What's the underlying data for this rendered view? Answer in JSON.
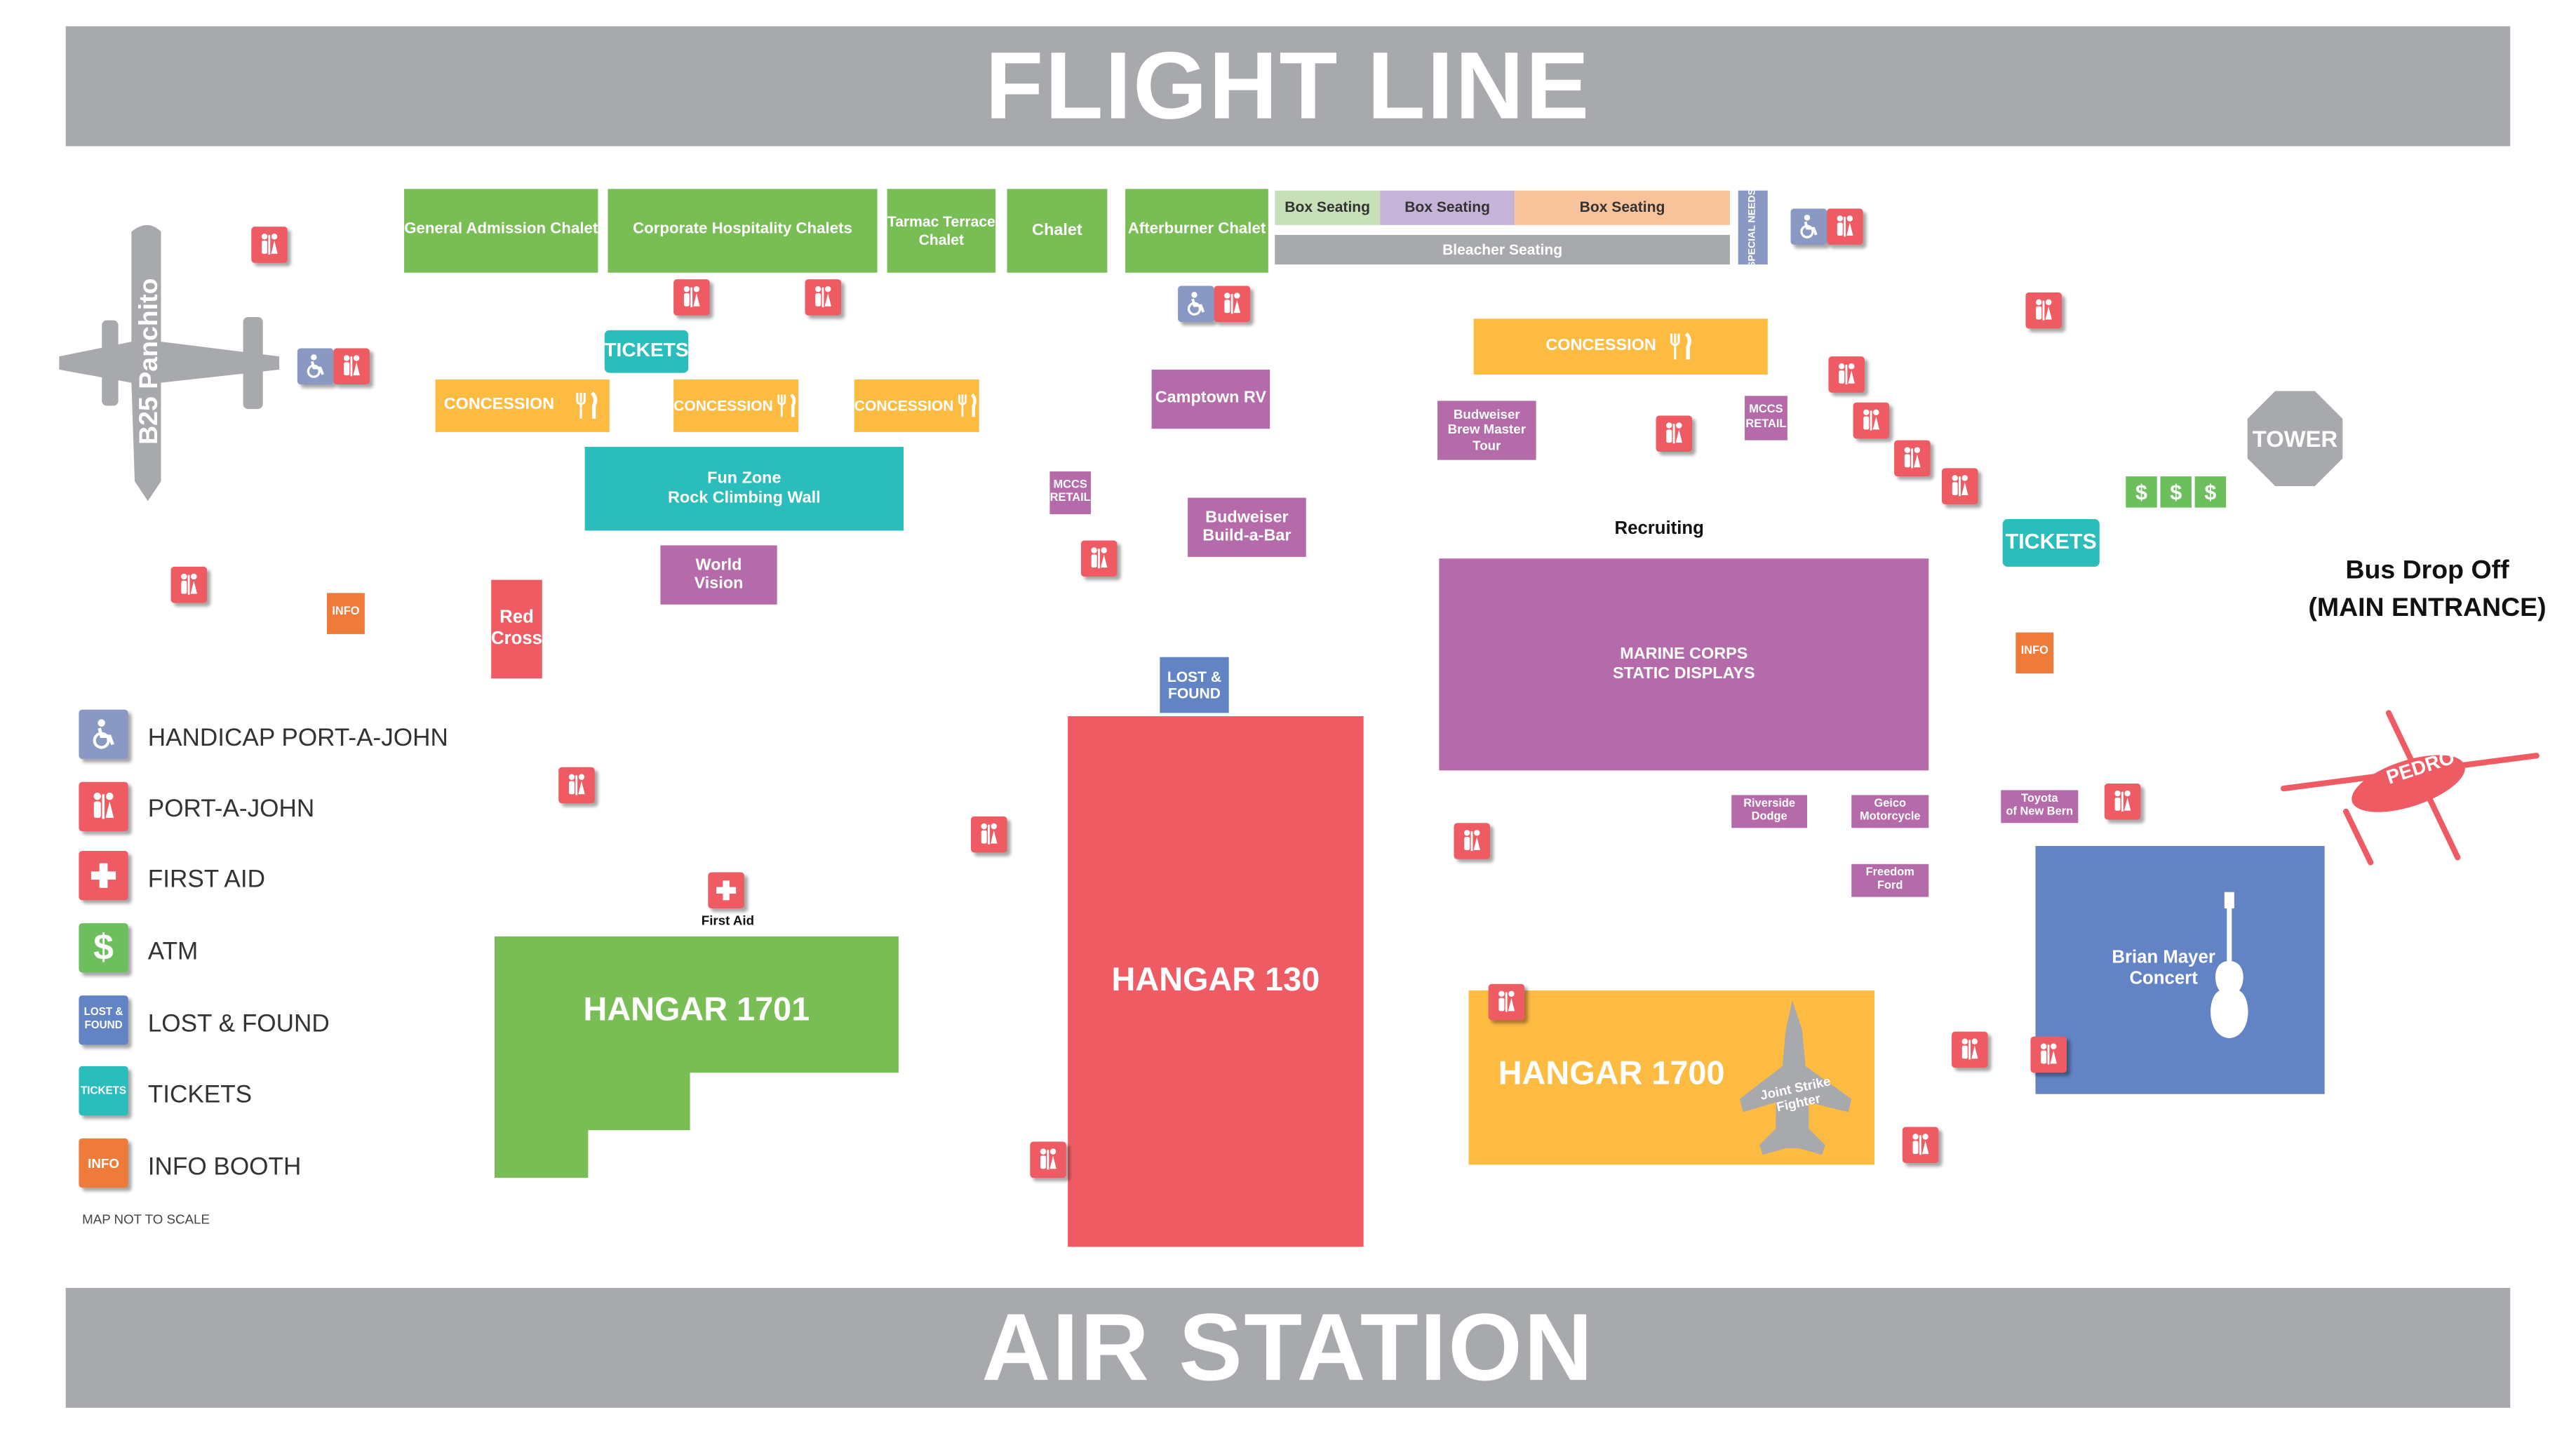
{
  "banners": {
    "top": "FLIGHT LINE",
    "bottom": "AIR STATION"
  },
  "aircraft": {
    "b25": "B25 Panchito",
    "helicopter": "PEDRO",
    "jsf": "Joint Strike\nFighter"
  },
  "chalets": {
    "general": "General Admission Chalet",
    "corporate": "Corporate Hospitality Chalets",
    "tarmac": "Tarmac Terrace\nChalet",
    "chalet": "Chalet",
    "afterburner": "Afterburner Chalet"
  },
  "seating": {
    "box1": "Box Seating",
    "box2": "Box Seating",
    "box3": "Box Seating",
    "bleacher": "Bleacher Seating",
    "special": "SPECIAL NEEDS"
  },
  "tickets": "TICKETS",
  "concession": "CONCESSION",
  "venues": {
    "funzone": "Fun Zone\nRock Climbing Wall",
    "worldvision": "World\nVision",
    "redcross": "Red\nCross",
    "camptown": "Camptown RV",
    "mccs_retail": "MCCS\nRETAIL",
    "budweiser_bar": "Budweiser\nBuild-a-Bar",
    "budweiser_tour": "Budweiser\nBrew Master\nTour",
    "recruiting": "Recruiting",
    "marine_corps": "MARINE CORPS\nSTATIC DISPLAYS",
    "lost_found": "LOST &\nFOUND",
    "info": "INFO",
    "riverside": "Riverside\nDodge",
    "geico": "Geico\nMotorcycle",
    "freedom": "Freedom\nFord",
    "toyota": "Toyota\nof New Bern",
    "concert": "Brian Mayer\nConcert",
    "tower": "TOWER",
    "bus": "Bus Drop Off\n(MAIN ENTRANCE)",
    "first_aid": "First Aid"
  },
  "hangars": {
    "h1701": "HANGAR 1701",
    "h130": "HANGAR 130",
    "h1700": "HANGAR 1700"
  },
  "atm_symbol": "$",
  "legend": [
    {
      "label": "HANDICAP PORT-A-JOHN",
      "icon": "handicap-icon",
      "color": "#8a98c4"
    },
    {
      "label": "PORT-A-JOHN",
      "icon": "restroom-icon",
      "color": "#ef5b63"
    },
    {
      "label": "FIRST AID",
      "icon": "first-aid-icon",
      "color": "#ef5b63"
    },
    {
      "label": "ATM",
      "icon": "dollar-icon",
      "color": "#6dbf5e",
      "symbol": "$"
    },
    {
      "label": "LOST & FOUND",
      "icon": "lost-found-icon",
      "color": "#6283c4",
      "symbol": "LOST &\nFOUND"
    },
    {
      "label": "TICKETS",
      "icon": "tickets-icon",
      "color": "#2bbcbc",
      "symbol": "TICKETS"
    },
    {
      "label": "INFO BOOTH",
      "icon": "info-icon",
      "color": "#ee7b3a",
      "symbol": "INFO"
    }
  ],
  "note": "MAP NOT TO SCALE",
  "colors": {
    "banner": "#a7a9ac",
    "green": "#79bd55",
    "yellow": "#fdbb42",
    "teal": "#2bbcbc",
    "purple": "#b56aa9",
    "red": "#ef5b63",
    "blue": "#6283c4",
    "orange": "#ee7b3a",
    "grey": "#a7a9ac"
  }
}
